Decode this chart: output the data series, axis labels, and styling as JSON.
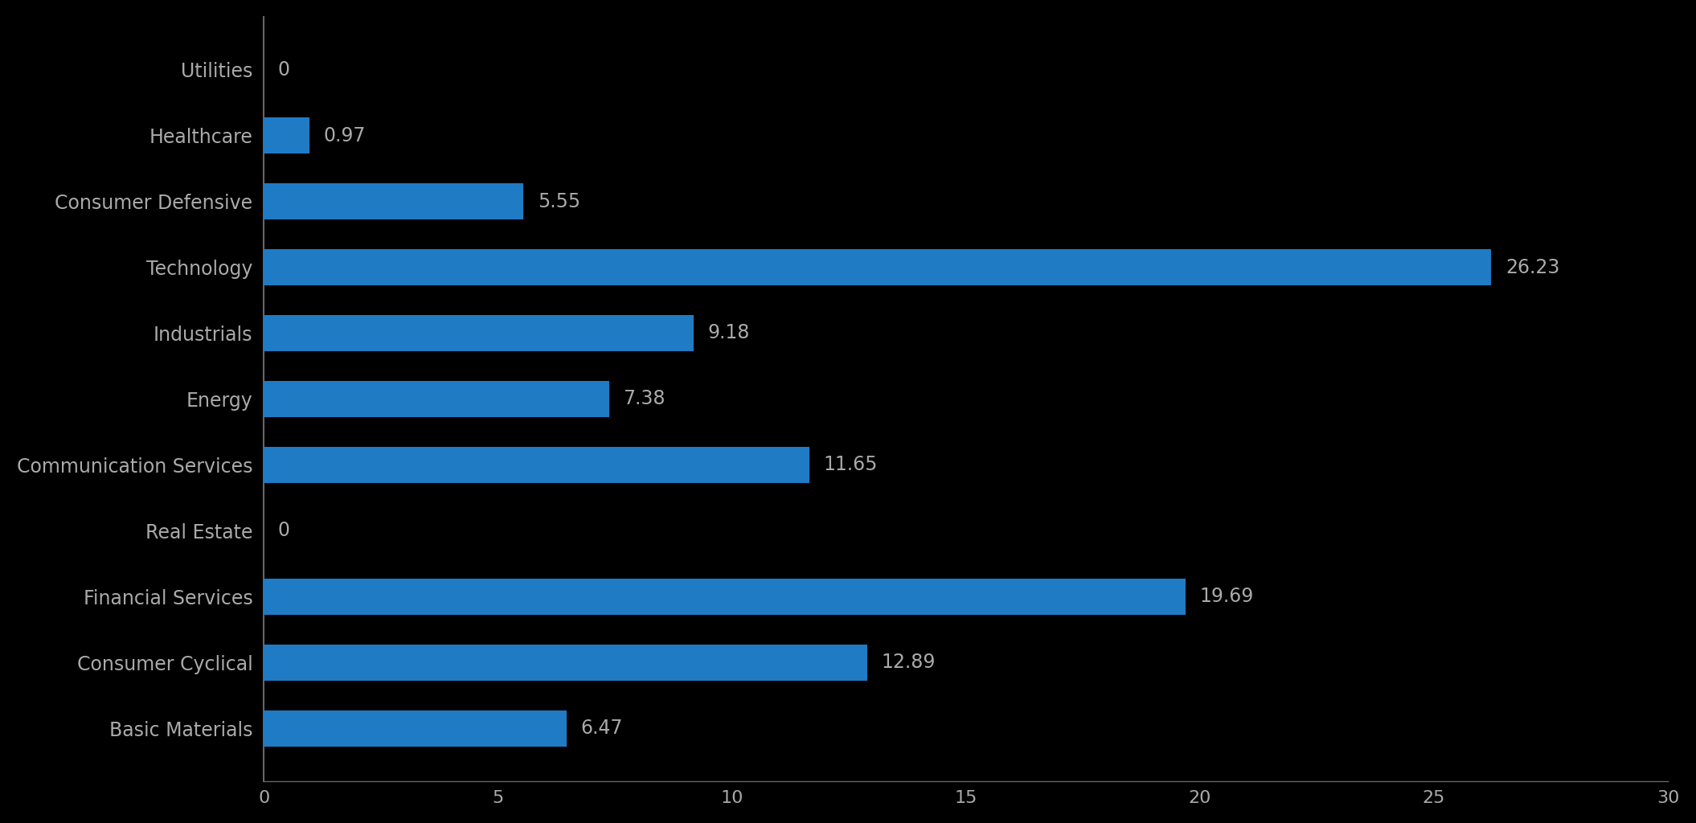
{
  "categories": [
    "Utilities",
    "Healthcare",
    "Consumer Defensive",
    "Technology",
    "Industrials",
    "Energy",
    "Communication Services",
    "Real Estate",
    "Financial Services",
    "Consumer Cyclical",
    "Basic Materials"
  ],
  "values": [
    0,
    0.97,
    5.55,
    26.23,
    9.18,
    7.38,
    11.65,
    0,
    19.69,
    12.89,
    6.47
  ],
  "bar_color": "#1f7bc4",
  "background_color": "#000000",
  "label_color": "#aaaaaa",
  "tick_color": "#aaaaaa",
  "value_label_color": "#aaaaaa",
  "xlim": [
    0,
    30
  ],
  "xticks": [
    0,
    5,
    10,
    15,
    20,
    25,
    30
  ],
  "bar_height": 0.55,
  "figsize": [
    21.1,
    10.24
  ],
  "dpi": 100,
  "label_fontsize": 17,
  "value_fontsize": 17,
  "tick_fontsize": 16
}
